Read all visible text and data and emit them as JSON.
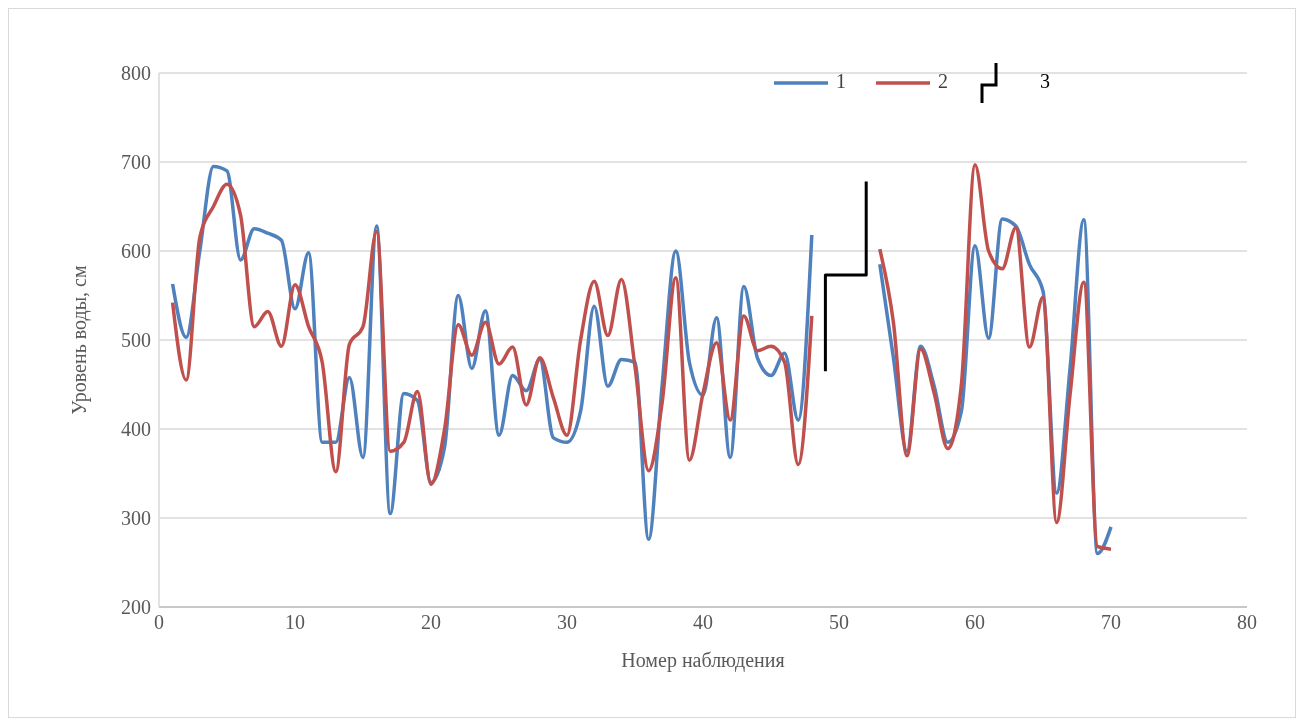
{
  "chart_data": {
    "type": "line",
    "xlabel": "Номер наблюдения",
    "ylabel": "Уровень воды, см",
    "xlim": [
      0,
      80
    ],
    "xticks": [
      0,
      10,
      20,
      30,
      40,
      50,
      60,
      70,
      80
    ],
    "ylim": [
      200,
      800
    ],
    "yticks": [
      200,
      300,
      400,
      500,
      600,
      700,
      800
    ],
    "grid": "y",
    "legend": "top right",
    "marker": "none",
    "line_style": "solid",
    "series": [
      {
        "name": "1",
        "color": "#4f81bd",
        "x": [
          1,
          2,
          3,
          4,
          5,
          6,
          7,
          8,
          9,
          10,
          11,
          12,
          13,
          14,
          15,
          16,
          17,
          18,
          19,
          20,
          21,
          22,
          23,
          24,
          25,
          26,
          27,
          28,
          29,
          30,
          31,
          32,
          33,
          34,
          35,
          36,
          37,
          38,
          39,
          40,
          41,
          42,
          43,
          44,
          45,
          46,
          47,
          48,
          49,
          50,
          51,
          52,
          53,
          54,
          55,
          56,
          57,
          58,
          59,
          60,
          61,
          62,
          63,
          64,
          65,
          66,
          67,
          68,
          69,
          70
        ],
        "values": [
          563,
          503,
          600,
          695,
          690,
          590,
          625,
          620,
          612,
          535,
          598,
          385,
          385,
          458,
          368,
          628,
          305,
          440,
          432,
          340,
          380,
          550,
          468,
          533,
          393,
          460,
          443,
          478,
          390,
          385,
          420,
          538,
          448,
          478,
          475,
          276,
          450,
          600,
          475,
          438,
          525,
          368,
          560,
          480,
          460,
          485,
          410,
          618,
          null,
          null,
          null,
          null,
          585,
          480,
          375,
          493,
          448,
          385,
          420,
          606,
          502,
          636,
          628,
          585,
          555,
          328,
          470,
          635,
          260,
          290
        ]
      },
      {
        "name": "2",
        "color": "#c0504d",
        "x": [
          1,
          2,
          3,
          4,
          5,
          6,
          7,
          8,
          9,
          10,
          11,
          12,
          13,
          14,
          15,
          16,
          17,
          18,
          19,
          20,
          21,
          22,
          23,
          24,
          25,
          26,
          27,
          28,
          29,
          30,
          31,
          32,
          33,
          34,
          35,
          36,
          37,
          38,
          39,
          40,
          41,
          42,
          43,
          44,
          45,
          46,
          47,
          48,
          49,
          50,
          51,
          52,
          53,
          54,
          55,
          56,
          57,
          58,
          59,
          60,
          61,
          62,
          63,
          64,
          65,
          66,
          67,
          68,
          69,
          70
        ],
        "values": [
          542,
          455,
          615,
          650,
          675,
          640,
          515,
          532,
          493,
          562,
          515,
          475,
          352,
          495,
          515,
          622,
          375,
          385,
          442,
          338,
          400,
          517,
          483,
          520,
          473,
          492,
          427,
          480,
          435,
          393,
          500,
          566,
          505,
          568,
          470,
          353,
          430,
          570,
          365,
          440,
          497,
          410,
          527,
          488,
          493,
          475,
          360,
          527,
          null,
          null,
          null,
          null,
          602,
          520,
          370,
          490,
          440,
          378,
          450,
          697,
          600,
          580,
          626,
          492,
          548,
          295,
          440,
          565,
          268,
          265
        ]
      },
      {
        "name": "3",
        "type": "step",
        "color": "#000000",
        "x": [
          49,
          52,
          52
        ],
        "values": [
          465,
          573,
          678
        ]
      }
    ]
  }
}
